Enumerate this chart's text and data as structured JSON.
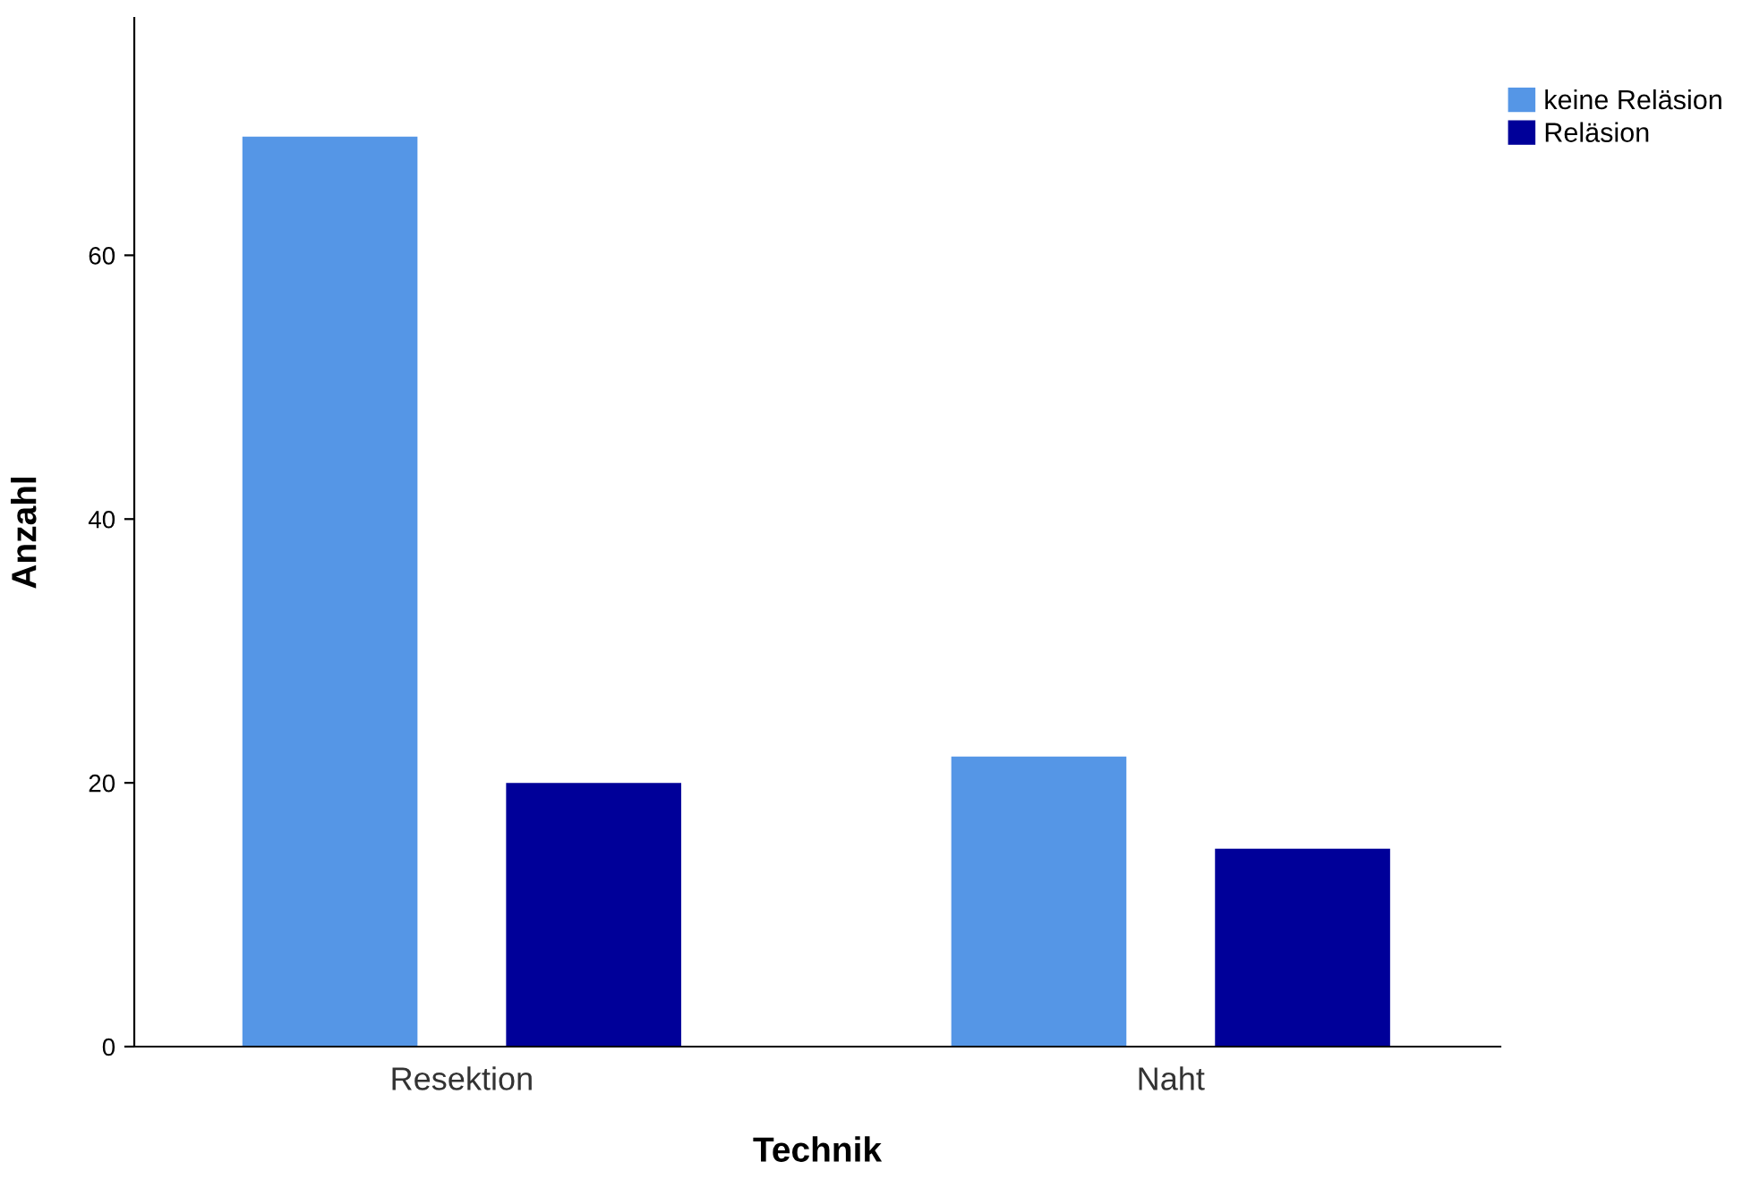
{
  "chart_data": {
    "type": "bar",
    "xlabel": "Technik",
    "ylabel": "Anzahl",
    "categories": [
      "Resektion",
      "Naht"
    ],
    "series": [
      {
        "name": "keine Reläsion",
        "color": "#5596e6",
        "values": [
          69,
          22
        ]
      },
      {
        "name": "Reläsion",
        "color": "#000099",
        "values": [
          20,
          15
        ]
      }
    ],
    "ylim": [
      0,
      78
    ],
    "yticks": [
      0,
      20,
      40,
      60
    ],
    "grid": false,
    "legend": "top right"
  }
}
